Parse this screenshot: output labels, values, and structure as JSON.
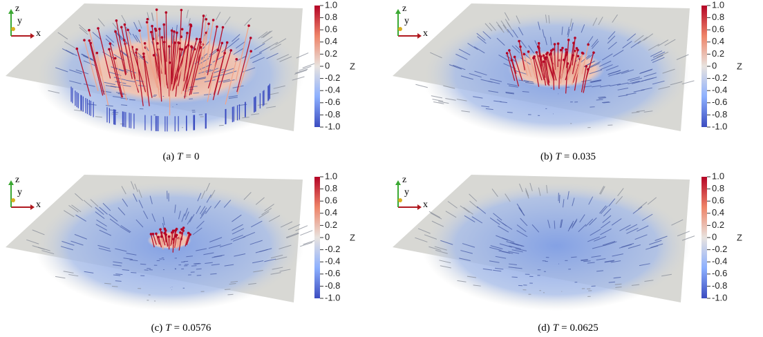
{
  "panels": [
    {
      "caption": {
        "tag": "(a)",
        "symbol": "T",
        "relation": "=",
        "value": "0"
      },
      "axes": {
        "x": "x",
        "y": "y",
        "z": "z"
      },
      "colorbar": {
        "title": "Z",
        "labels": [
          "1.0",
          "0.8",
          "0.6",
          "0.4",
          "0.2",
          "0",
          "-0.2",
          "-0.4",
          "-0.6",
          "-0.8",
          "-1.0"
        ]
      }
    },
    {
      "caption": {
        "tag": "(b)",
        "symbol": "T",
        "relation": "=",
        "value": "0.035"
      },
      "axes": {
        "x": "x",
        "y": "y",
        "z": "z"
      },
      "colorbar": {
        "title": "Z",
        "labels": [
          "1.0",
          "0.8",
          "0.6",
          "0.4",
          "0.2",
          "0",
          "-0.2",
          "-0.4",
          "-0.6",
          "-0.8",
          "-1.0"
        ]
      }
    },
    {
      "caption": {
        "tag": "(c)",
        "symbol": "T",
        "relation": "=",
        "value": "0.0576"
      },
      "axes": {
        "x": "x",
        "y": "y",
        "z": "z"
      },
      "colorbar": {
        "title": "Z",
        "labels": [
          "1.0",
          "0.8",
          "0.6",
          "0.4",
          "0.2",
          "0",
          "-0.2",
          "-0.4",
          "-0.6",
          "-0.8",
          "-1.0"
        ]
      }
    },
    {
      "caption": {
        "tag": "(d)",
        "symbol": "T",
        "relation": "=",
        "value": "0.0625"
      },
      "axes": {
        "x": "x",
        "y": "y",
        "z": "z"
      },
      "colorbar": {
        "title": "Z",
        "labels": [
          "1.0",
          "0.8",
          "0.6",
          "0.4",
          "0.2",
          "0",
          "-0.2",
          "-0.4",
          "-0.6",
          "-0.8",
          "-1.0"
        ]
      }
    }
  ]
}
